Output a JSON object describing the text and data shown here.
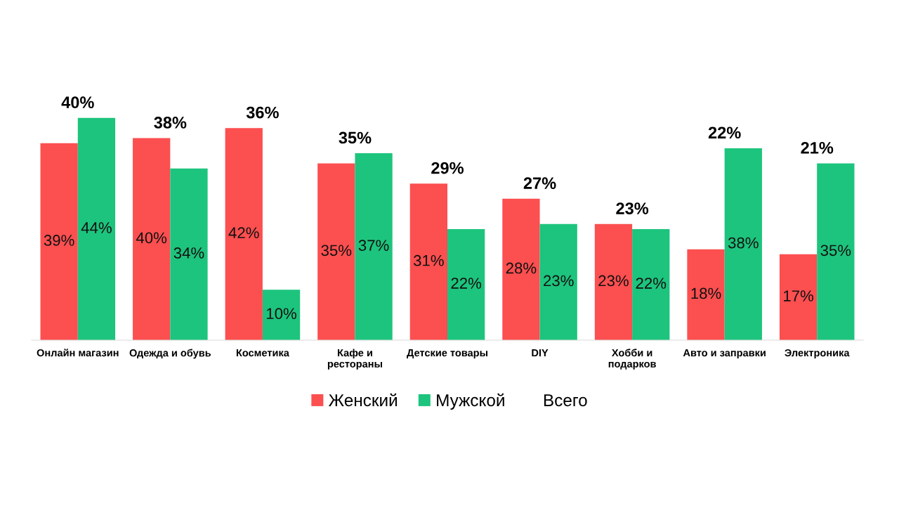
{
  "chart_data": {
    "type": "bar",
    "categories": [
      "Онлайн магазин",
      "Одежда и обувь",
      "Косметика",
      "Кафе и\nрестораны",
      "Детские товары",
      "DIY",
      "Хобби и\nподарков",
      "Авто и заправки",
      "Электроника"
    ],
    "series": [
      {
        "name": "Женский",
        "color": "#fc4f50",
        "values": [
          39,
          40,
          42,
          35,
          31,
          28,
          23,
          18,
          17
        ],
        "value_labels": [
          "39%",
          "40%",
          "42%",
          "35%",
          "31%",
          "28%",
          "23%",
          "18%",
          "17%"
        ]
      },
      {
        "name": "Мужской",
        "color": "#1dc47d",
        "values": [
          44,
          34,
          10,
          37,
          22,
          23,
          22,
          38,
          35
        ],
        "value_labels": [
          "44%",
          "34%",
          "10%",
          "37%",
          "22%",
          "23%",
          "22%",
          "38%",
          "35%"
        ]
      },
      {
        "name": "Всего",
        "type": "line",
        "line_style": "none",
        "marker": "none",
        "values": [
          null,
          null,
          null,
          null,
          null,
          null,
          null,
          null,
          null
        ]
      }
    ],
    "annotations": [
      "40%",
      "38%",
      "36%",
      "35%",
      "29%",
      "27%",
      "23%",
      "22%",
      "21%"
    ],
    "tick_labels": "x",
    "legend": "bottom"
  }
}
